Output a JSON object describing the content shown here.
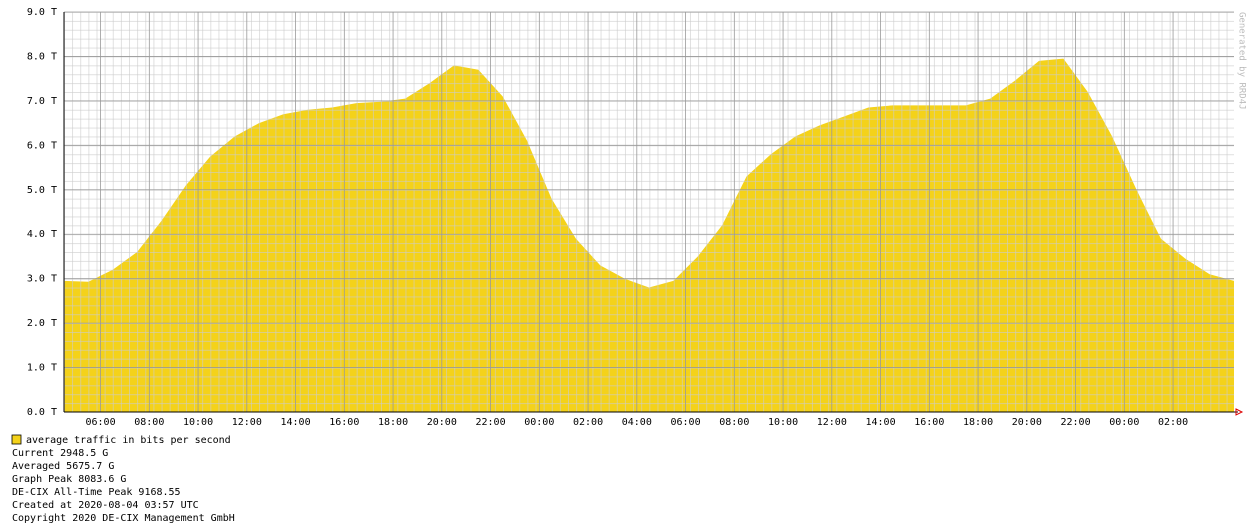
{
  "chart_data": {
    "type": "area",
    "series": [
      {
        "name": "average traffic in bits per second",
        "color": "#f4d21a",
        "x": [
          0,
          1,
          2,
          3,
          4,
          5,
          6,
          7,
          8,
          9,
          10,
          11,
          12,
          13,
          14,
          15,
          16,
          17,
          18,
          19,
          20,
          21,
          22,
          23,
          24,
          25,
          26,
          27,
          28,
          29,
          30,
          31,
          32,
          33,
          34,
          35,
          36,
          37,
          38,
          39,
          40,
          41,
          42,
          43,
          44,
          45,
          46,
          47,
          48
        ],
        "values": [
          2.95,
          2.93,
          3.2,
          3.6,
          4.3,
          5.1,
          5.75,
          6.2,
          6.5,
          6.7,
          6.8,
          6.85,
          6.95,
          6.98,
          7.05,
          7.4,
          7.8,
          7.7,
          7.1,
          6.1,
          4.8,
          3.9,
          3.3,
          3.0,
          2.8,
          2.95,
          3.5,
          4.2,
          5.3,
          5.8,
          6.2,
          6.45,
          6.65,
          6.85,
          6.9,
          6.9,
          6.9,
          6.9,
          7.05,
          7.45,
          7.9,
          7.95,
          7.2,
          6.2,
          5.0,
          3.9,
          3.45,
          3.1,
          2.95
        ]
      }
    ],
    "xlim": [
      0,
      48
    ],
    "xticks": [
      {
        "value": 1.5,
        "label": "06:00"
      },
      {
        "value": 3.5,
        "label": "08:00"
      },
      {
        "value": 5.5,
        "label": "10:00"
      },
      {
        "value": 7.5,
        "label": "12:00"
      },
      {
        "value": 9.5,
        "label": "14:00"
      },
      {
        "value": 11.5,
        "label": "16:00"
      },
      {
        "value": 13.5,
        "label": "18:00"
      },
      {
        "value": 15.5,
        "label": "20:00"
      },
      {
        "value": 17.5,
        "label": "22:00"
      },
      {
        "value": 19.5,
        "label": "00:00"
      },
      {
        "value": 21.5,
        "label": "02:00"
      },
      {
        "value": 23.5,
        "label": "04:00"
      },
      {
        "value": 25.5,
        "label": "06:00"
      },
      {
        "value": 27.5,
        "label": "08:00"
      },
      {
        "value": 29.5,
        "label": "10:00"
      },
      {
        "value": 31.5,
        "label": "12:00"
      },
      {
        "value": 33.5,
        "label": "14:00"
      },
      {
        "value": 35.5,
        "label": "16:00"
      },
      {
        "value": 37.5,
        "label": "18:00"
      },
      {
        "value": 39.5,
        "label": "20:00"
      },
      {
        "value": 41.5,
        "label": "22:00"
      },
      {
        "value": 43.5,
        "label": "00:00"
      },
      {
        "value": 45.5,
        "label": "02:00"
      }
    ],
    "ylim": [
      0,
      9
    ],
    "yticks": [
      {
        "value": 0,
        "label": "0.0 T"
      },
      {
        "value": 1,
        "label": "1.0 T"
      },
      {
        "value": 2,
        "label": "2.0 T"
      },
      {
        "value": 3,
        "label": "3.0 T"
      },
      {
        "value": 4,
        "label": "4.0 T"
      },
      {
        "value": 5,
        "label": "5.0 T"
      },
      {
        "value": 6,
        "label": "6.0 T"
      },
      {
        "value": 7,
        "label": "7.0 T"
      },
      {
        "value": 8,
        "label": "8.0 T"
      },
      {
        "value": 9,
        "label": "9.0 T"
      }
    ],
    "grid": true,
    "watermark": "Generated by RRD4J",
    "stats": [
      "Current 2948.5 G",
      "Averaged 5675.7 G",
      "Graph Peak 8083.6 G",
      "DE-CIX All-Time Peak 9168.55",
      "Created at 2020-08-04 03:57 UTC",
      "Copyright 2020 DE-CIX Management GmbH"
    ]
  }
}
